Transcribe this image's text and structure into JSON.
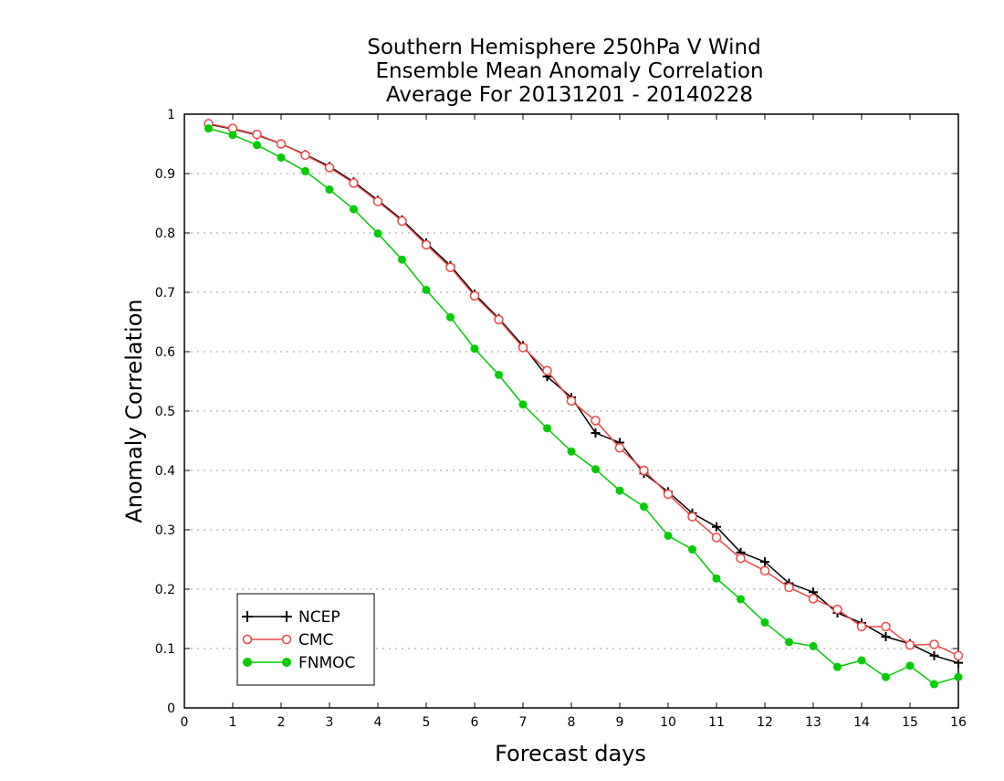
{
  "chart_data": {
    "type": "line",
    "title_lines": [
      "Southern Hemisphere 250hPa V Wind",
      "Ensemble Mean Anomaly Correlation",
      "Average For 20131201 - 20140228"
    ],
    "xlabel": "Forecast days",
    "ylabel": "Anomaly Correlation",
    "xlim": [
      0,
      16
    ],
    "ylim": [
      0,
      1
    ],
    "xticks": [
      "0",
      "1",
      "2",
      "3",
      "4",
      "5",
      "6",
      "7",
      "8",
      "9",
      "10",
      "11",
      "12",
      "13",
      "14",
      "15",
      "16"
    ],
    "yticks": [
      "0",
      "0.1",
      "0.2",
      "0.3",
      "0.4",
      "0.5",
      "0.6",
      "0.7",
      "0.8",
      "0.9",
      "1"
    ],
    "grid": "horizontal-dotted",
    "legend_position": "bottom-left",
    "x": [
      0.5,
      1,
      1.5,
      2,
      2.5,
      3,
      3.5,
      4,
      4.5,
      5,
      5.5,
      6,
      6.5,
      7,
      7.5,
      8,
      8.5,
      9,
      9.5,
      10,
      10.5,
      11,
      11.5,
      12,
      12.5,
      13,
      13.5,
      14,
      14.5,
      15,
      15.5,
      16
    ],
    "series": [
      {
        "name": "NCEP",
        "color": "#000000",
        "marker": "plus",
        "values": [
          0.983,
          0.975,
          0.965,
          0.95,
          0.932,
          0.912,
          0.886,
          0.855,
          0.822,
          0.783,
          0.745,
          0.697,
          0.656,
          0.61,
          0.558,
          0.523,
          0.463,
          0.447,
          0.395,
          0.364,
          0.328,
          0.305,
          0.262,
          0.246,
          0.21,
          0.195,
          0.16,
          0.143,
          0.12,
          0.108,
          0.088,
          0.076
        ]
      },
      {
        "name": "CMC",
        "color": "#ee4444",
        "marker": "open-circle",
        "values": [
          0.984,
          0.976,
          0.966,
          0.95,
          0.931,
          0.91,
          0.884,
          0.853,
          0.82,
          0.78,
          0.742,
          0.694,
          0.654,
          0.607,
          0.568,
          0.517,
          0.484,
          0.438,
          0.4,
          0.36,
          0.322,
          0.287,
          0.252,
          0.231,
          0.203,
          0.184,
          0.166,
          0.137,
          0.137,
          0.106,
          0.107,
          0.088
        ]
      },
      {
        "name": "FNMOC",
        "color": "#00cc00",
        "marker": "filled-circle",
        "values": [
          0.976,
          0.965,
          0.948,
          0.927,
          0.904,
          0.873,
          0.84,
          0.799,
          0.755,
          0.704,
          0.658,
          0.605,
          0.561,
          0.511,
          0.471,
          0.432,
          0.402,
          0.366,
          0.339,
          0.29,
          0.267,
          0.218,
          0.183,
          0.144,
          0.111,
          0.104,
          0.069,
          0.08,
          0.052,
          0.071,
          0.04,
          0.052
        ]
      }
    ]
  }
}
